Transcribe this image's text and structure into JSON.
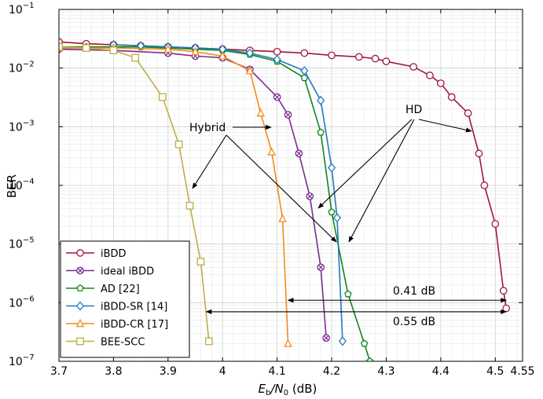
{
  "chart_data": {
    "type": "line",
    "xlabel_main": "E",
    "xlabel_sub1": "b",
    "xlabel_mid": "/N",
    "xlabel_sub2": "0",
    "xlabel_unit": " (dB)",
    "ylabel": "BER",
    "yscale": "log",
    "xlim": [
      3.7,
      4.55
    ],
    "ylim": [
      1e-07,
      0.1
    ],
    "grid": true,
    "legend_position": "bottom-left",
    "x_ticks": [
      3.7,
      3.8,
      3.9,
      4.0,
      4.1,
      4.2,
      4.3,
      4.4,
      4.5,
      4.55
    ],
    "x_tick_labels": [
      "3.7",
      "3.8",
      "3.9",
      "4",
      "4.1",
      "4.2",
      "4.3",
      "4.4",
      "4.5",
      "4.55"
    ],
    "y_ticks": [
      {
        "value": 1e-07,
        "base": "10",
        "exp": "−7"
      },
      {
        "value": 1e-06,
        "base": "10",
        "exp": "−6"
      },
      {
        "value": 1e-05,
        "base": "10",
        "exp": "−5"
      },
      {
        "value": 0.0001,
        "base": "10",
        "exp": "−4"
      },
      {
        "value": 0.001,
        "base": "10",
        "exp": "−3"
      },
      {
        "value": 0.01,
        "base": "10",
        "exp": "−2"
      },
      {
        "value": 0.1,
        "base": "10",
        "exp": "−1"
      }
    ],
    "series": [
      {
        "name": "iBDD",
        "color": "#a1163a",
        "marker": "circle",
        "x": [
          3.7,
          3.75,
          3.8,
          3.85,
          3.9,
          3.95,
          4.0,
          4.05,
          4.1,
          4.15,
          4.2,
          4.25,
          4.28,
          4.3,
          4.35,
          4.38,
          4.4,
          4.42,
          4.45,
          4.47,
          4.48,
          4.5,
          4.515,
          4.52
        ],
        "y": [
          0.028,
          0.026,
          0.025,
          0.024,
          0.023,
          0.022,
          0.021,
          0.02,
          0.019,
          0.018,
          0.0165,
          0.0155,
          0.0145,
          0.013,
          0.0105,
          0.0075,
          0.0055,
          0.0032,
          0.0017,
          0.00035,
          0.0001,
          2.2e-05,
          1.6e-06,
          8e-07
        ]
      },
      {
        "name": "ideal iBDD",
        "color": "#7b2d8e",
        "marker": "circle-x",
        "x": [
          3.7,
          3.8,
          3.9,
          3.95,
          4.0,
          4.05,
          4.1,
          4.12,
          4.14,
          4.16,
          4.18,
          4.19
        ],
        "y": [
          0.021,
          0.02,
          0.018,
          0.016,
          0.015,
          0.0095,
          0.0032,
          0.0016,
          0.00035,
          6.5e-05,
          4e-06,
          2.5e-07
        ]
      },
      {
        "name": "AD [22]",
        "color": "#13871a",
        "marker": "pentagon",
        "x": [
          3.7,
          3.75,
          3.8,
          3.85,
          3.9,
          3.95,
          4.0,
          4.05,
          4.1,
          4.15,
          4.18,
          4.2,
          4.23,
          4.26,
          4.27
        ],
        "y": [
          0.023,
          0.023,
          0.023,
          0.023,
          0.022,
          0.021,
          0.02,
          0.017,
          0.013,
          0.0068,
          0.0008,
          3.5e-05,
          1.4e-06,
          2e-07,
          1e-07
        ]
      },
      {
        "name": "iBDD-SR [14]",
        "color": "#1f7bbf",
        "marker": "diamond",
        "x": [
          3.8,
          3.85,
          3.9,
          3.95,
          4.0,
          4.05,
          4.1,
          4.15,
          4.18,
          4.2,
          4.21,
          4.22
        ],
        "y": [
          0.025,
          0.024,
          0.023,
          0.022,
          0.021,
          0.018,
          0.014,
          0.009,
          0.0028,
          0.0002,
          2.8e-05,
          2.2e-07
        ]
      },
      {
        "name": "iBDD-CR [17]",
        "color": "#f28c1a",
        "marker": "triangle",
        "x": [
          3.7,
          3.8,
          3.9,
          3.95,
          4.0,
          4.05,
          4.07,
          4.09,
          4.11,
          4.12
        ],
        "y": [
          0.022,
          0.022,
          0.021,
          0.019,
          0.016,
          0.009,
          0.0017,
          0.00037,
          2.7e-05,
          2e-07
        ]
      },
      {
        "name": "BEE-SCC",
        "color": "#bdae48",
        "marker": "square",
        "x": [
          3.7,
          3.75,
          3.8,
          3.84,
          3.89,
          3.92,
          3.94,
          3.96,
          3.975
        ],
        "y": [
          0.023,
          0.022,
          0.02,
          0.015,
          0.0032,
          0.0005,
          4.5e-05,
          5e-06,
          2.2e-07
        ]
      }
    ],
    "annotations": {
      "hybrid_label": "Hybrid",
      "hd_label": "HD",
      "gap1_label": "0.41 dB",
      "gap2_label": "0.55 dB",
      "gap1_range": [
        4.12,
        4.52
      ],
      "gap1_y": 1.1e-06,
      "gap2_range": [
        3.97,
        4.52
      ],
      "gap2_y": 7e-07
    }
  }
}
